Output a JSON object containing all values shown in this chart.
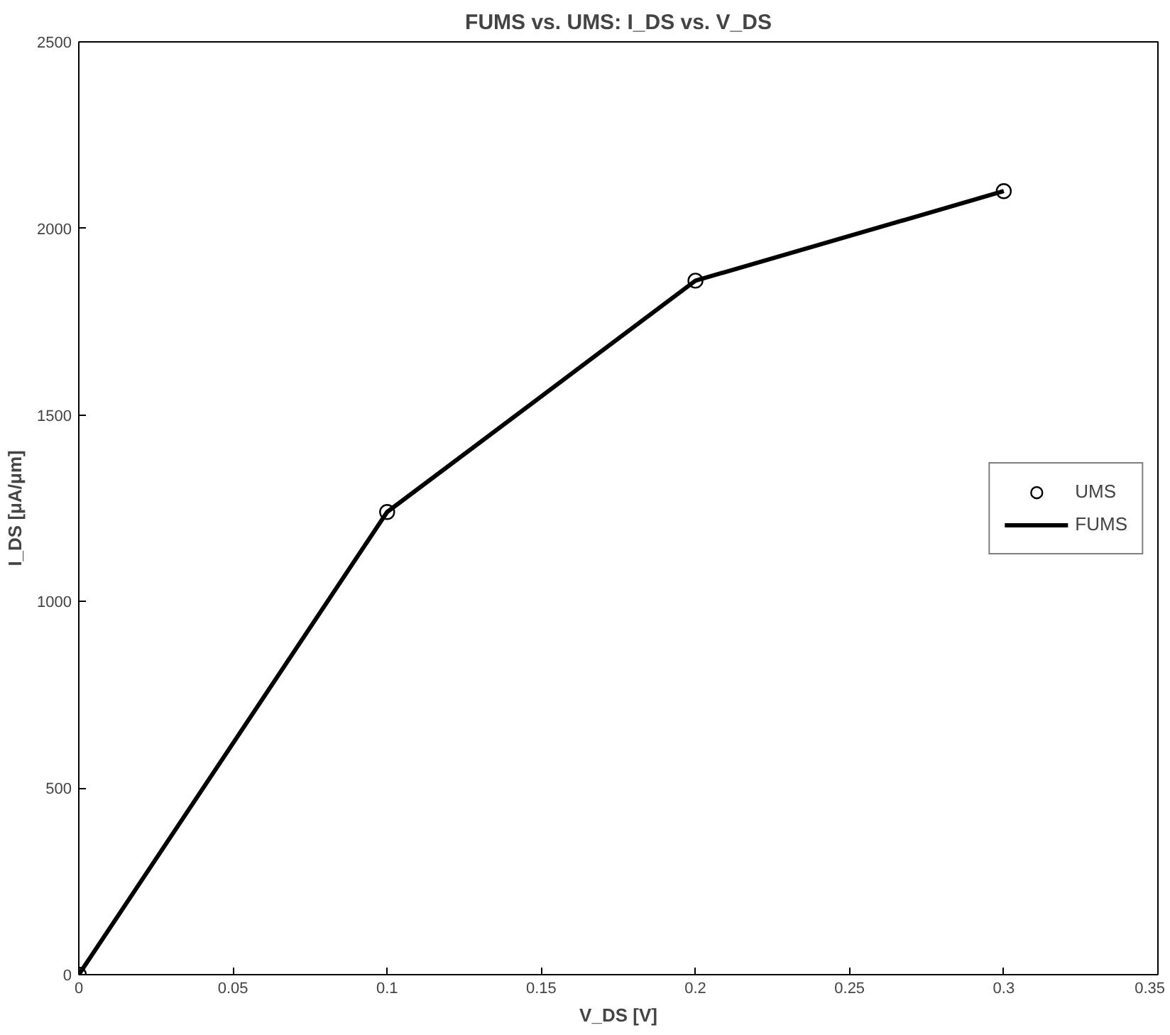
{
  "chart_data": {
    "type": "line",
    "title": "FUMS vs. UMS: I_DS vs. V_DS",
    "xlabel": "V_DS [V]",
    "ylabel": "I_DS [μA/μm]",
    "x": [
      0,
      0.1,
      0.2,
      0.3
    ],
    "series": [
      {
        "name": "UMS",
        "type": "scatter",
        "marker": "circle",
        "color": "#000000",
        "values": [
          0,
          1240,
          1860,
          2100
        ]
      },
      {
        "name": "FUMS",
        "color": "#000000",
        "values": [
          0,
          1240,
          1860,
          2100
        ]
      }
    ],
    "xlim": [
      0,
      0.35
    ],
    "xticks": [
      0,
      0.05,
      0.1,
      0.15,
      0.2,
      0.25,
      0.3,
      0.35
    ],
    "ylim": [
      0,
      2500
    ],
    "yticks": [
      0,
      500,
      1000,
      1500,
      2000,
      2500
    ],
    "grid": false,
    "legend": "right"
  }
}
